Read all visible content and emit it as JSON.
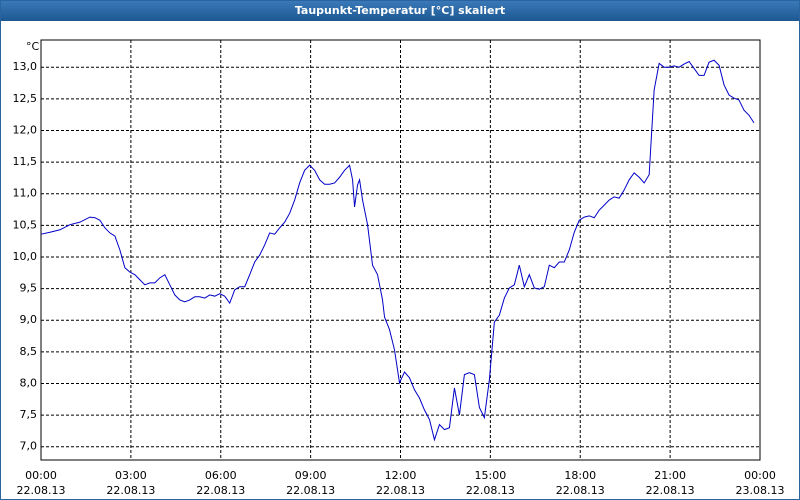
{
  "chart_data": {
    "type": "line",
    "title": "Taupunkt-Temperatur [°C] skaliert",
    "ylabel": "°C",
    "color": "#0000c8",
    "grid": true,
    "xlim": [
      0,
      1440
    ],
    "ylim": [
      6.79,
      13.43
    ],
    "xticks": [
      {
        "value": 0,
        "label": "00:00"
      },
      {
        "value": 180,
        "label": "03:00"
      },
      {
        "value": 360,
        "label": "06:00"
      },
      {
        "value": 540,
        "label": "09:00"
      },
      {
        "value": 720,
        "label": "12:00"
      },
      {
        "value": 900,
        "label": "15:00"
      },
      {
        "value": 1080,
        "label": "18:00"
      },
      {
        "value": 1260,
        "label": "21:00"
      },
      {
        "value": 1440,
        "label": "00:00"
      }
    ],
    "xtick_dates": [
      "22.08.13",
      "22.08.13",
      "22.08.13",
      "22.08.13",
      "22.08.13",
      "22.08.13",
      "22.08.13",
      "22.08.13",
      "23.08.13"
    ],
    "yticks": [
      {
        "value": 7.0,
        "label": "7,0"
      },
      {
        "value": 7.5,
        "label": "7,5"
      },
      {
        "value": 8.0,
        "label": "8,0"
      },
      {
        "value": 8.5,
        "label": "8,5"
      },
      {
        "value": 9.0,
        "label": "9,0"
      },
      {
        "value": 9.5,
        "label": "9,5"
      },
      {
        "value": 10.0,
        "label": "10,0"
      },
      {
        "value": 10.5,
        "label": "10,5"
      },
      {
        "value": 11.0,
        "label": "11,0"
      },
      {
        "value": 11.5,
        "label": "11,5"
      },
      {
        "value": 12.0,
        "label": "12,0"
      },
      {
        "value": 12.5,
        "label": "12,5"
      },
      {
        "value": 13.0,
        "label": "13,0"
      }
    ],
    "x": [
      0,
      18,
      38,
      58,
      78,
      98,
      108,
      118,
      128,
      138,
      148,
      158,
      168,
      178,
      188,
      198,
      208,
      218,
      228,
      238,
      248,
      258,
      268,
      278,
      288,
      298,
      308,
      318,
      328,
      338,
      348,
      358,
      368,
      378,
      388,
      398,
      408,
      418,
      428,
      438,
      448,
      458,
      468,
      478,
      488,
      498,
      508,
      518,
      528,
      538,
      548,
      558,
      568,
      578,
      588,
      598,
      608,
      618,
      624,
      628,
      634,
      638,
      644,
      654,
      664,
      674,
      684,
      688,
      698,
      708,
      718,
      728,
      738,
      748,
      758,
      768,
      778,
      788,
      798,
      808,
      818,
      828,
      838,
      848,
      858,
      868,
      878,
      888,
      898,
      908,
      918,
      928,
      938,
      948,
      958,
      968,
      978,
      988,
      998,
      1008,
      1018,
      1028,
      1038,
      1048,
      1058,
      1068,
      1078,
      1088,
      1098,
      1108,
      1118,
      1128,
      1138,
      1148,
      1158,
      1168,
      1178,
      1188,
      1198,
      1208,
      1218,
      1228,
      1238,
      1248,
      1258,
      1268,
      1278,
      1288,
      1298,
      1308,
      1318,
      1328,
      1338,
      1348,
      1358,
      1368,
      1378,
      1388,
      1398,
      1408,
      1418,
      1428
    ],
    "values": [
      10.36,
      10.39,
      10.43,
      10.51,
      10.55,
      10.63,
      10.62,
      10.58,
      10.46,
      10.38,
      10.33,
      10.11,
      9.83,
      9.76,
      9.72,
      9.64,
      9.56,
      9.59,
      9.59,
      9.67,
      9.72,
      9.56,
      9.4,
      9.32,
      9.29,
      9.32,
      9.37,
      9.37,
      9.35,
      9.4,
      9.38,
      9.42,
      9.38,
      9.27,
      9.48,
      9.53,
      9.53,
      9.72,
      9.92,
      10.03,
      10.19,
      10.38,
      10.36,
      10.46,
      10.55,
      10.69,
      10.9,
      11.17,
      11.37,
      11.45,
      11.37,
      11.22,
      11.15,
      11.15,
      11.17,
      11.26,
      11.37,
      11.45,
      11.22,
      10.79,
      11.14,
      11.22,
      10.9,
      10.51,
      9.87,
      9.72,
      9.32,
      9.05,
      8.85,
      8.53,
      8.01,
      8.18,
      8.09,
      7.9,
      7.77,
      7.58,
      7.43,
      7.11,
      7.35,
      7.27,
      7.3,
      7.93,
      7.5,
      8.14,
      8.17,
      8.14,
      7.62,
      7.46,
      8.06,
      8.97,
      9.08,
      9.35,
      9.51,
      9.56,
      9.87,
      9.53,
      9.72,
      9.51,
      9.49,
      9.53,
      9.87,
      9.83,
      9.92,
      9.92,
      10.11,
      10.39,
      10.58,
      10.63,
      10.65,
      10.62,
      10.74,
      10.82,
      10.9,
      10.95,
      10.93,
      11.06,
      11.22,
      11.33,
      11.26,
      11.17,
      11.3,
      12.64,
      13.06,
      13.0,
      13.0,
      13.02,
      13.0,
      13.05,
      13.09,
      12.98,
      12.87,
      12.87,
      13.08,
      13.11,
      13.03,
      12.72,
      12.56,
      12.51,
      12.48,
      12.32,
      12.24,
      12.12
    ]
  }
}
